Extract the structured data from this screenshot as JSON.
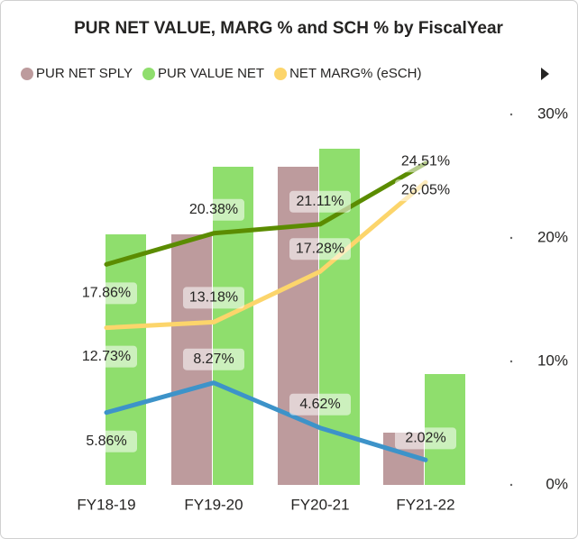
{
  "chart_data": {
    "type": "combo",
    "title": "PUR NET VALUE, MARG % and SCH % by FiscalYear",
    "categories": [
      "FY18-19",
      "FY19-20",
      "FY20-21",
      "FY21-22"
    ],
    "ylim": [
      0,
      411
    ],
    "y2lim": [
      0,
      30
    ],
    "y2ticks": [
      {
        "value": 0,
        "label": "0%"
      },
      {
        "value": 10,
        "label": "10%"
      },
      {
        "value": 20,
        "label": "20%"
      },
      {
        "value": 30,
        "label": "30%"
      }
    ],
    "series": [
      {
        "name": "PUR NET SPLY",
        "type": "bar",
        "color": "#bd9b9d",
        "values": [
          null,
          278,
          353,
          58
        ]
      },
      {
        "name": "PUR VALUE NET",
        "type": "bar",
        "color": "#8fde6d",
        "values": [
          278,
          353,
          373,
          123
        ]
      },
      {
        "name": "NET MARG% (eSCH)",
        "type": "line",
        "axis": "y2",
        "color": "#fcd56b",
        "values": [
          12.73,
          13.18,
          17.28,
          24.51
        ],
        "value_labels": [
          "12.73%",
          "13.18%",
          "17.28%",
          "24.51%"
        ]
      },
      {
        "type": "line",
        "axis": "y2",
        "color": "#5b8c00",
        "values": [
          17.86,
          20.38,
          21.11,
          26.05
        ],
        "value_labels": [
          "17.86%",
          "20.38%",
          "21.11%",
          "26.05%"
        ]
      },
      {
        "type": "line",
        "axis": "y2",
        "color": "#3d93c9",
        "values": [
          5.86,
          8.27,
          4.62,
          2.02
        ],
        "value_labels": [
          "5.86%",
          "8.27%",
          "4.62%",
          "2.02%"
        ]
      }
    ]
  }
}
